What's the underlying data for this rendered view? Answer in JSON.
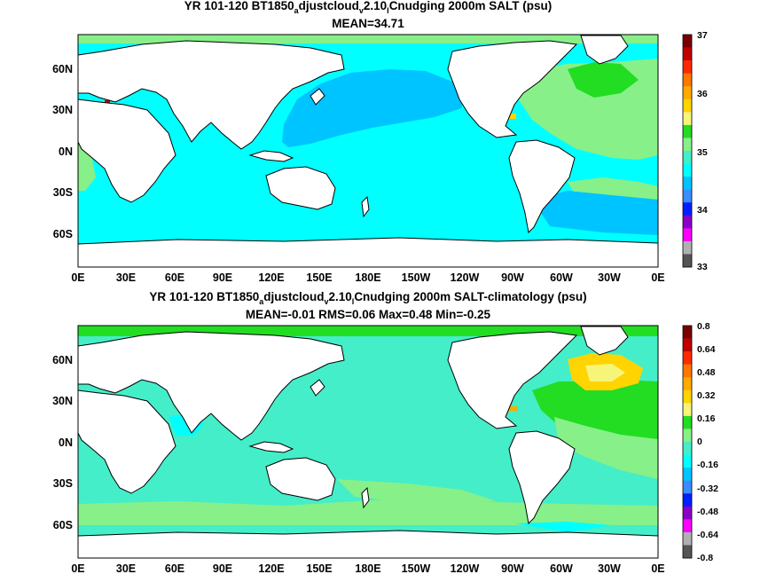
{
  "panels": [
    {
      "id": "top",
      "title_parts": [
        "YR 101-120 BT1850",
        "a",
        "djustcloud",
        "v",
        "2.10",
        "l",
        "Cnudging 2000m SALT (psu)"
      ],
      "subtitle": "MEAN=34.71",
      "x_ticks": [
        "0E",
        "30E",
        "60E",
        "90E",
        "120E",
        "150E",
        "180E",
        "150W",
        "120W",
        "90W",
        "60W",
        "30W",
        "0E"
      ],
      "y_ticks": [
        "60N",
        "30N",
        "0N",
        "30S",
        "60S"
      ],
      "colorbar": {
        "labels": [
          "37",
          "36",
          "35",
          "34",
          "33"
        ],
        "colors": [
          "#7a0000",
          "#c00000",
          "#ff2a00",
          "#ff7700",
          "#ffaa00",
          "#ffd400",
          "#f5f57a",
          "#22dd22",
          "#88f088",
          "#44eec8",
          "#00ffff",
          "#00c4ff",
          "#3a8cff",
          "#0020ff",
          "#8a00c8",
          "#ff00ff",
          "#b0b0b0",
          "#555555"
        ]
      }
    },
    {
      "id": "bottom",
      "title_parts": [
        "YR 101-120 BT1850",
        "a",
        "djustcloud",
        "v",
        "2.10",
        "l",
        "Cnudging 2000m SALT-climatology (psu)"
      ],
      "subtitle": "MEAN=-0.01   RMS=0.06   Max=0.48   Min=-0.25",
      "x_ticks": [
        "0E",
        "30E",
        "60E",
        "90E",
        "120E",
        "150E",
        "180E",
        "150W",
        "120W",
        "90W",
        "60W",
        "30W",
        "0E"
      ],
      "y_ticks": [
        "60N",
        "30N",
        "0N",
        "30S",
        "60S"
      ],
      "colorbar": {
        "labels": [
          "0.8",
          "0.64",
          "0.48",
          "0.32",
          "0.16",
          "0",
          "-0.16",
          "-0.32",
          "-0.48",
          "-0.64",
          "-0.8"
        ],
        "colors": [
          "#7a0000",
          "#c00000",
          "#ff2a00",
          "#ff7700",
          "#ffaa00",
          "#ffd400",
          "#f5f57a",
          "#22dd22",
          "#88f088",
          "#44eec8",
          "#00ffff",
          "#00c4ff",
          "#3a8cff",
          "#0020ff",
          "#8a00c8",
          "#ff00ff",
          "#b0b0b0",
          "#555555"
        ]
      }
    }
  ]
}
